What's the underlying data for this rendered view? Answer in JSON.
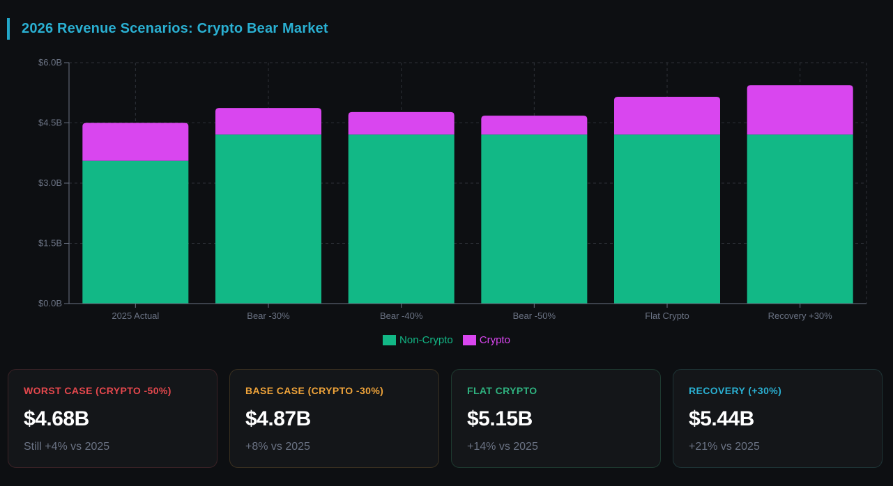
{
  "header": {
    "title": "2026 Revenue Scenarios: Crypto Bear Market"
  },
  "colors": {
    "non_crypto": "#12b886",
    "crypto": "#d946ef",
    "axis_text": "#6b7384",
    "title": "#2ab0d2"
  },
  "chart_data": {
    "type": "bar",
    "stacked": true,
    "title": "2026 Revenue Scenarios: Crypto Bear Market",
    "xlabel": "",
    "ylabel": "",
    "categories": [
      "2025 Actual",
      "Bear -30%",
      "Bear -40%",
      "Bear -50%",
      "Flat Crypto",
      "Recovery +30%"
    ],
    "series": [
      {
        "name": "Non-Crypto",
        "color": "#12b886",
        "values": [
          3.56,
          4.21,
          4.21,
          4.21,
          4.21,
          4.21
        ]
      },
      {
        "name": "Crypto",
        "color": "#d946ef",
        "values": [
          0.94,
          0.66,
          0.56,
          0.47,
          0.94,
          1.23
        ]
      }
    ],
    "ylim": [
      0,
      6.0
    ],
    "yticks": [
      0,
      1.5,
      3.0,
      4.5,
      6.0
    ],
    "ytick_labels": [
      "$0.0B",
      "$1.5B",
      "$3.0B",
      "$4.5B",
      "$6.0B"
    ],
    "grid": true,
    "legend": {
      "position": "bottom-center",
      "entries": [
        "Non-Crypto",
        "Crypto"
      ]
    }
  },
  "legend": {
    "items": [
      {
        "label": "Non-Crypto",
        "color": "#12b886"
      },
      {
        "label": "Crypto",
        "color": "#d946ef"
      }
    ]
  },
  "cards": [
    {
      "label": "WORST CASE (CRYPTO -50%)",
      "value": "$4.68B",
      "sub": "Still +4% vs 2025",
      "accent": "#e5484d",
      "border": "#3a2226"
    },
    {
      "label": "BASE CASE (CRYPTO -30%)",
      "value": "$4.87B",
      "sub": "+8% vs 2025",
      "accent": "#f0a43a",
      "border": "#3a3020"
    },
    {
      "label": "FLAT CRYPTO",
      "value": "$5.15B",
      "sub": "+14% vs 2025",
      "accent": "#2fb380",
      "border": "#1e3a30"
    },
    {
      "label": "RECOVERY (+30%)",
      "value": "$5.44B",
      "sub": "+21% vs 2025",
      "accent": "#2ab0d2",
      "border": "#1e3436"
    }
  ]
}
